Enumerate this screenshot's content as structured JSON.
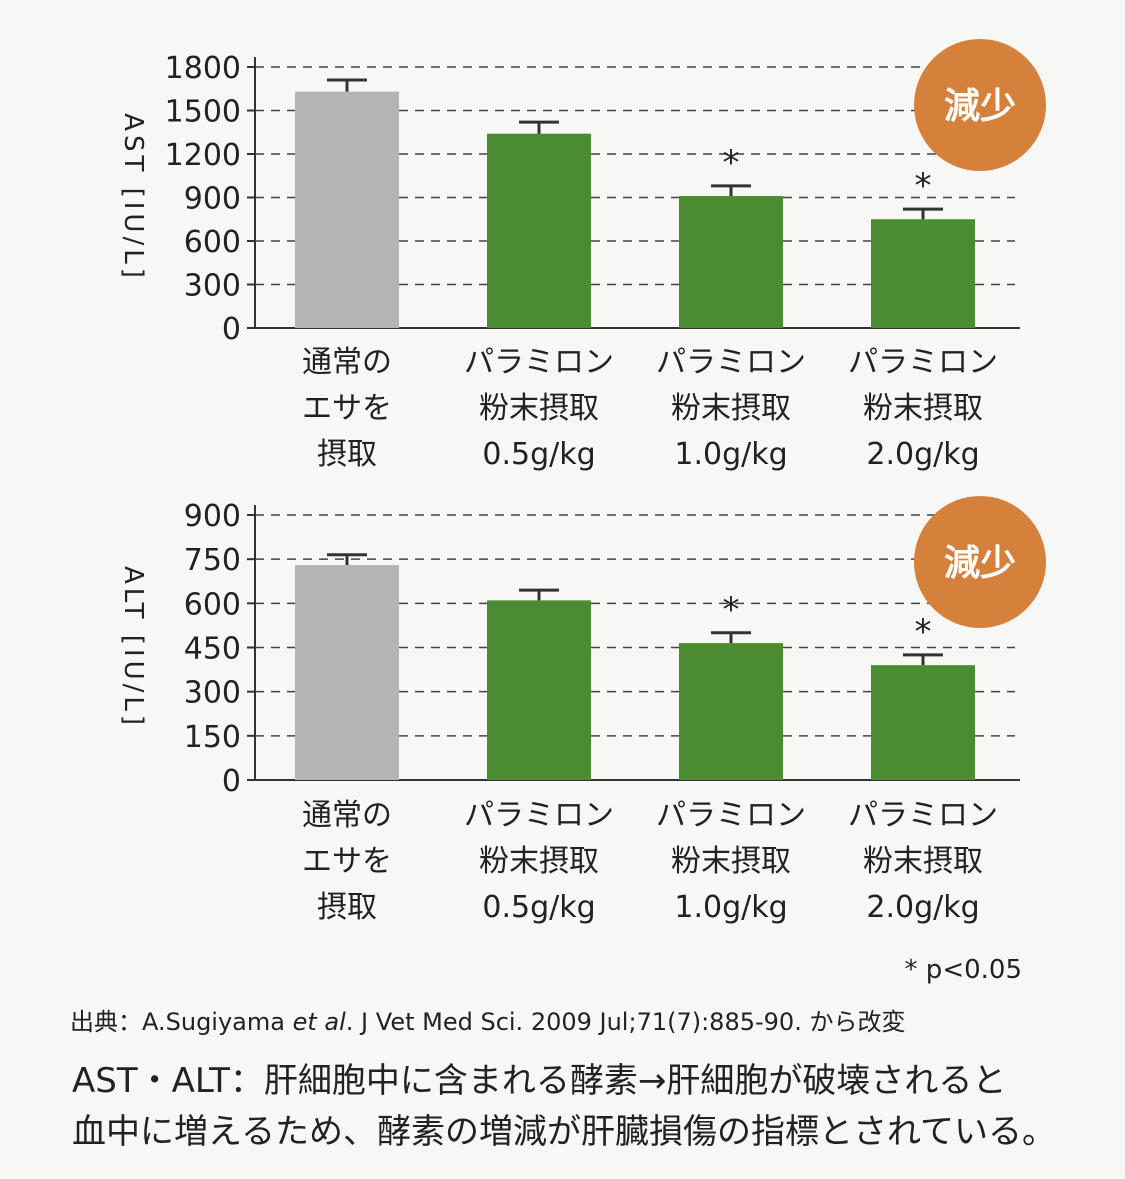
{
  "chart_data": [
    {
      "type": "bar",
      "y_label": "AST [IU/L]",
      "badge": "減少",
      "categories": [
        [
          "通常の",
          "エサを",
          "摂取"
        ],
        [
          "パラミロン",
          "粉末摂取",
          "0.5g/kg"
        ],
        [
          "パラミロン",
          "粉末摂取",
          "1.0g/kg"
        ],
        [
          "パラミロン",
          "粉末摂取",
          "2.0g/kg"
        ]
      ],
      "values": [
        1630,
        1340,
        910,
        750
      ],
      "errors": [
        80,
        80,
        70,
        70
      ],
      "significance": [
        null,
        null,
        "*",
        "*"
      ],
      "colors": [
        "#b4b4b4",
        "#4c8c30",
        "#4c8c30",
        "#4c8c30"
      ],
      "ylim": [
        0,
        1800
      ],
      "yticks": [
        0,
        300,
        600,
        900,
        1200,
        1500,
        1800
      ],
      "grid": true
    },
    {
      "type": "bar",
      "y_label": "ALT [IU/L]",
      "badge": "減少",
      "categories": [
        [
          "通常の",
          "エサを",
          "摂取"
        ],
        [
          "パラミロン",
          "粉末摂取",
          "0.5g/kg"
        ],
        [
          "パラミロン",
          "粉末摂取",
          "1.0g/kg"
        ],
        [
          "パラミロン",
          "粉末摂取",
          "2.0g/kg"
        ]
      ],
      "values": [
        730,
        610,
        465,
        390
      ],
      "errors": [
        35,
        35,
        35,
        35
      ],
      "significance": [
        null,
        null,
        "*",
        "*"
      ],
      "colors": [
        "#b4b4b4",
        "#4c8c30",
        "#4c8c30",
        "#4c8c30"
      ],
      "ylim": [
        0,
        900
      ],
      "yticks": [
        0,
        150,
        300,
        450,
        600,
        750,
        900
      ],
      "grid": true
    }
  ],
  "footnote": "* p<0.05",
  "source": [
    "出典：A.Sugiyama ",
    "et al",
    ". J Vet Med Sci. 2009 Jul;71(7):885-90. から改変"
  ],
  "explanation": [
    "AST・ALT：肝細胞中に含まれる酵素→肝細胞が破壊されると",
    "血中に増えるため、酵素の増減が肝臓損傷の指標とされている。"
  ]
}
